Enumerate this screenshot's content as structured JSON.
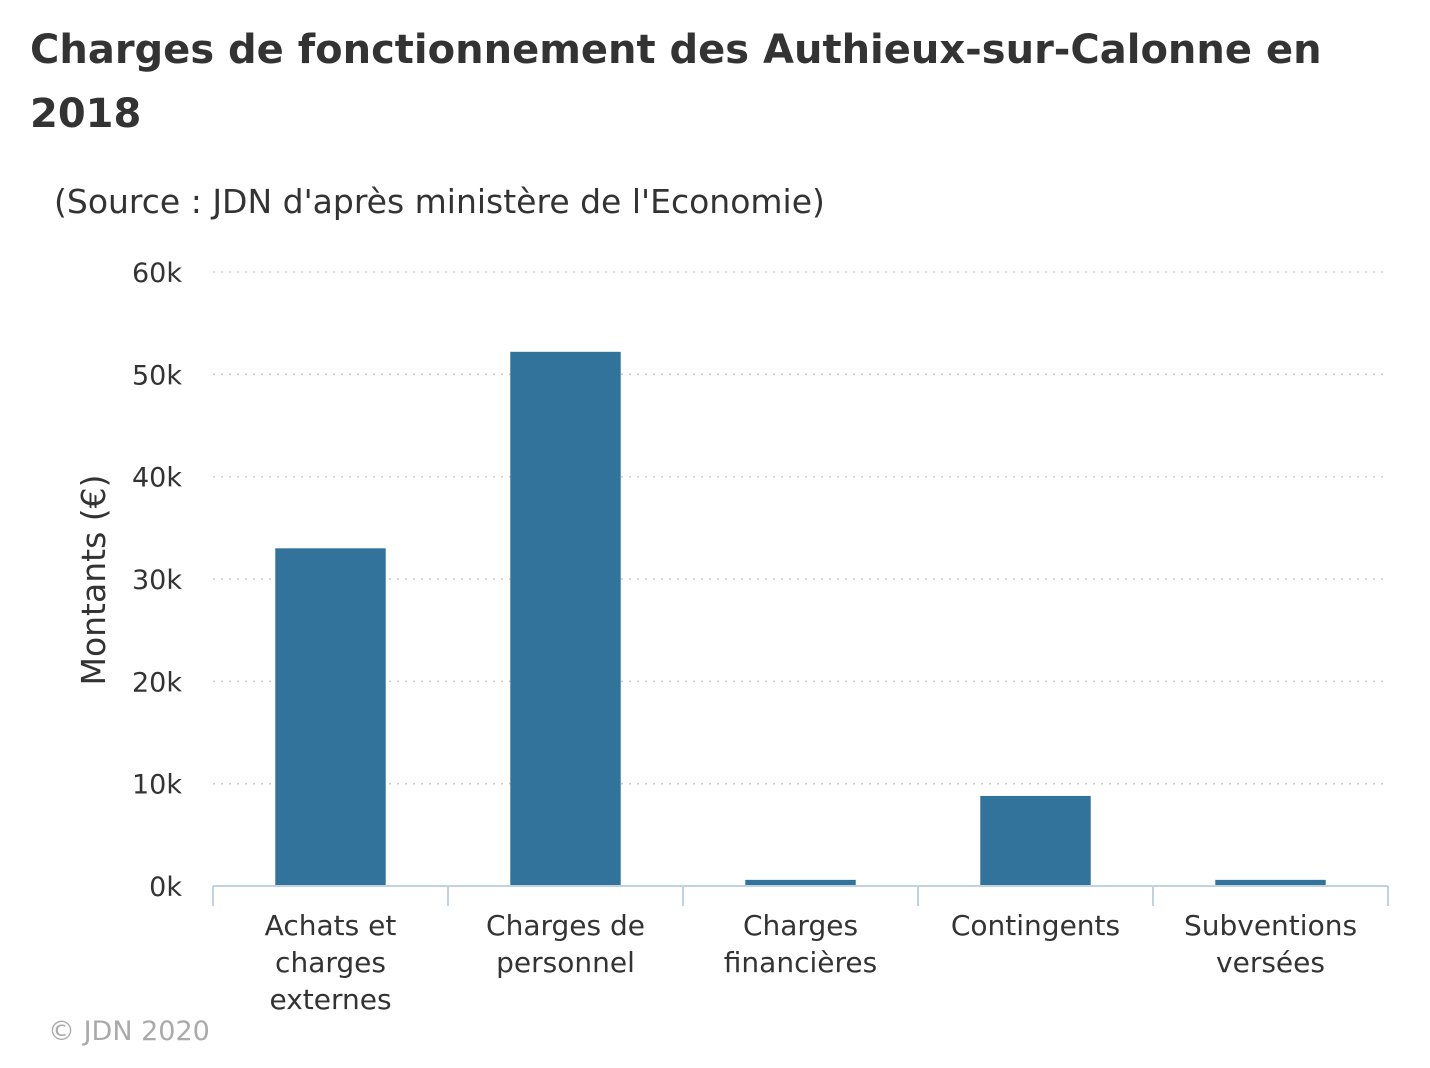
{
  "title": "Charges de fonctionnement des Authieux-sur-Calonne en 2018",
  "subtitle": "(Source : JDN d'après ministère de l'Economie)",
  "credit": "© JDN 2020",
  "colors": {
    "bar": "#32739c",
    "grid": "#cccccc",
    "axis": "#c3d2e0",
    "text": "#333333",
    "credit": "#aaaaaa"
  },
  "chart_data": {
    "type": "bar",
    "title": "Charges de fonctionnement des Authieux-sur-Calonne en 2018",
    "subtitle": "(Source : JDN d'après ministère de l'Economie)",
    "xlabel": "",
    "ylabel": "Montants (€)",
    "categories": [
      [
        "Achats et",
        "charges",
        "externes"
      ],
      [
        "Charges de",
        "personnel"
      ],
      [
        "Charges",
        "financières"
      ],
      [
        "Contingents"
      ],
      [
        "Subventions",
        "versées"
      ]
    ],
    "values": [
      33000,
      52200,
      600,
      8800,
      600
    ],
    "ylim": [
      0,
      60000
    ],
    "yticks": [
      0,
      10000,
      20000,
      30000,
      40000,
      50000,
      60000
    ],
    "ytick_labels": [
      "0k",
      "10k",
      "20k",
      "30k",
      "40k",
      "50k",
      "60k"
    ],
    "grid": true,
    "legend": "none"
  }
}
